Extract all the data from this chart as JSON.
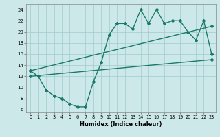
{
  "line1_x": [
    0,
    1,
    2,
    3,
    4,
    5,
    6,
    7,
    8,
    9,
    10,
    11,
    12,
    13,
    14,
    15,
    16,
    17,
    18,
    19,
    20,
    21,
    22,
    23
  ],
  "line1_y": [
    13,
    12,
    9.5,
    8.5,
    8.0,
    7.0,
    6.5,
    6.5,
    11.0,
    14.5,
    19.5,
    21.5,
    21.5,
    20.5,
    24.0,
    21.5,
    24.0,
    21.5,
    22.0,
    22.0,
    20.0,
    18.5,
    22.0,
    16.0
  ],
  "line2_x": [
    0,
    23
  ],
  "line2_y": [
    13.0,
    21.0
  ],
  "line3_x": [
    0,
    23
  ],
  "line3_y": [
    12.0,
    15.0
  ],
  "color": "#1a7a6a",
  "bg_color": "#cce8e8",
  "grid_color": "#a0cccc",
  "xlabel": "Humidex (Indice chaleur)",
  "ylim": [
    5.5,
    25
  ],
  "xlim": [
    -0.5,
    23.5
  ],
  "yticks": [
    6,
    8,
    10,
    12,
    14,
    16,
    18,
    20,
    22,
    24
  ],
  "xticks": [
    0,
    1,
    2,
    3,
    4,
    5,
    6,
    7,
    8,
    9,
    10,
    11,
    12,
    13,
    14,
    15,
    16,
    17,
    18,
    19,
    20,
    21,
    22,
    23
  ],
  "marker_size": 2.0,
  "line_width": 1.0,
  "tick_fontsize": 5.0,
  "xlabel_fontsize": 6.0
}
